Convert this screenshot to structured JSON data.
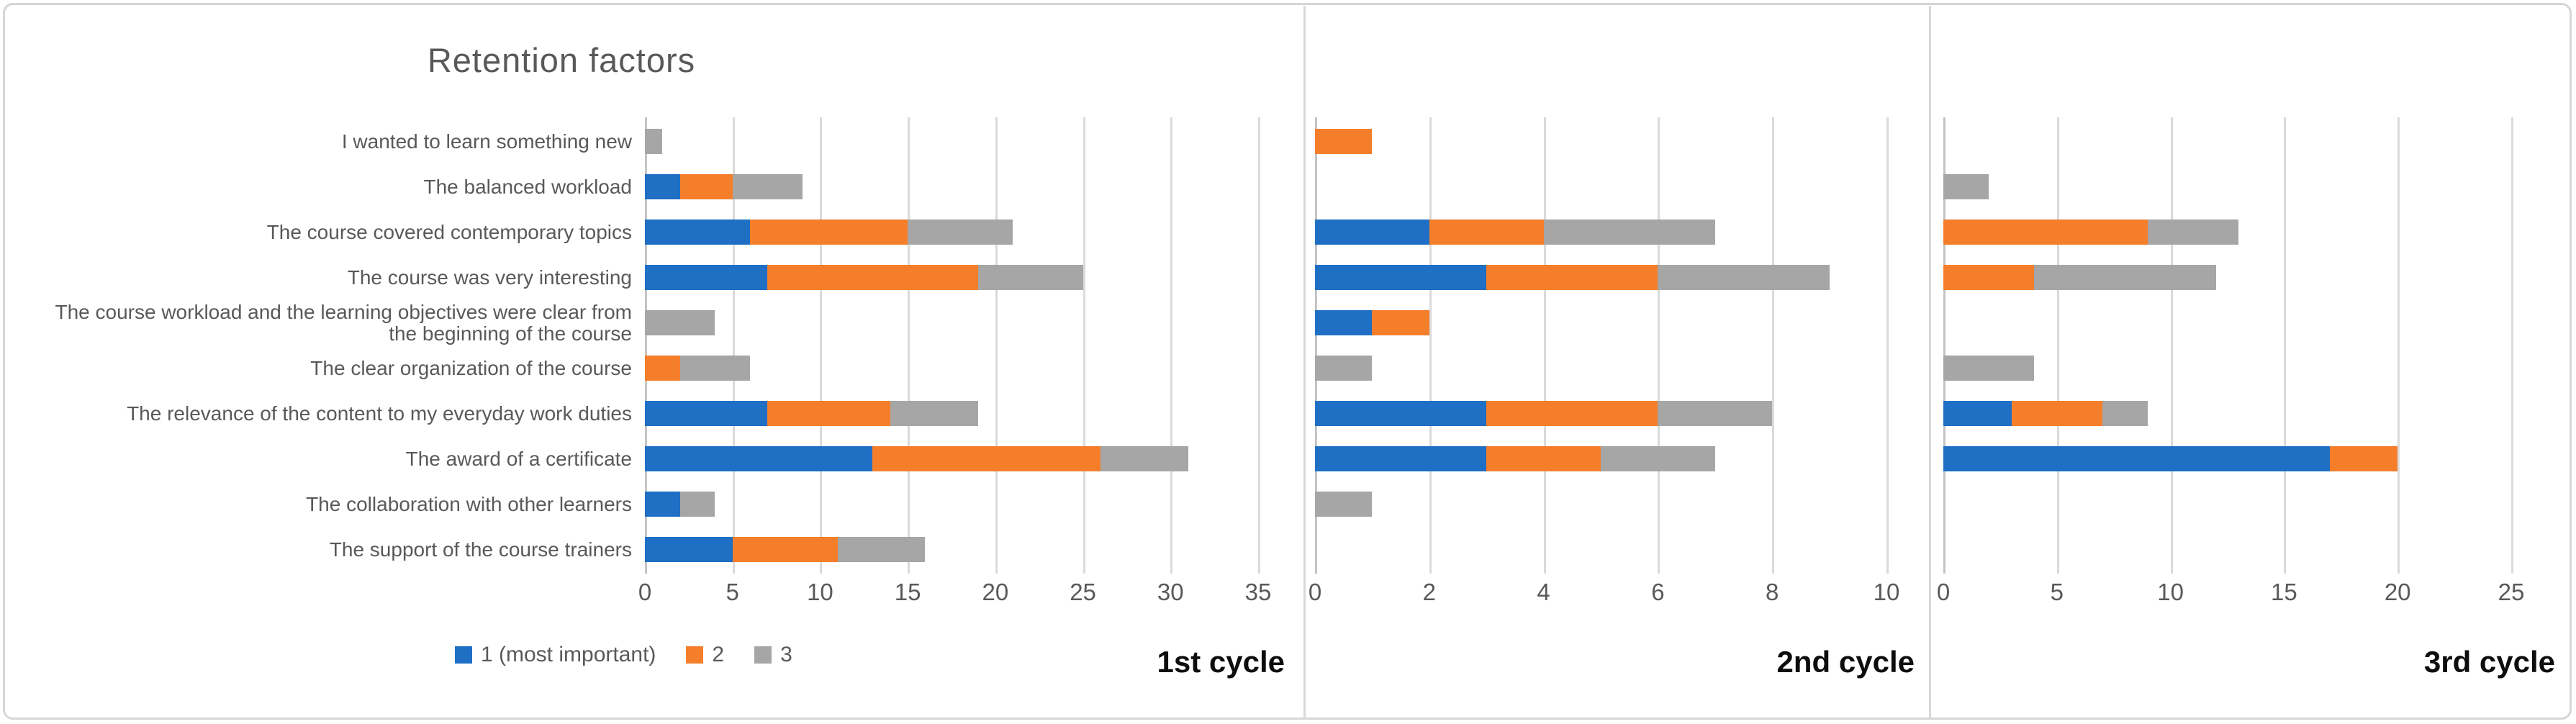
{
  "figure": {
    "title": "Retention factors",
    "legend": [
      {
        "label": "1 (most important)",
        "color": "#1f6fc5"
      },
      {
        "label": "2",
        "color": "#f57e2b"
      },
      {
        "label": "3",
        "color": "#a6a6a6"
      }
    ],
    "colors": {
      "blue": "#1f6fc5",
      "orange": "#f57e2b",
      "gray": "#a6a6a6",
      "gridline": "#dadada",
      "text": "#595959"
    }
  },
  "categories": [
    "I wanted to learn something new",
    "The balanced workload",
    "The course covered contemporary topics",
    "The course was very interesting",
    "The course workload and the learning objectives were clear from the beginning of the course",
    "The clear organization of the course",
    "The relevance of the content to my everyday work duties",
    "The award of a certificate",
    "The collaboration with other learners",
    "The support of the course trainers"
  ],
  "chart_data": [
    {
      "type": "bar",
      "orientation": "horizontal",
      "stacked": true,
      "panel_label": "1st cycle",
      "title": "Retention factors",
      "xlim": [
        0,
        35
      ],
      "xticks": [
        0,
        5,
        10,
        15,
        20,
        25,
        30,
        35
      ],
      "grid": true,
      "legend_position": "bottom",
      "categories_ref": "categories",
      "series": [
        {
          "name": "1 (most important)",
          "color": "#1f6fc5",
          "values": [
            0,
            2,
            6,
            7,
            0,
            0,
            7,
            13,
            2,
            5
          ]
        },
        {
          "name": "2",
          "color": "#f57e2b",
          "values": [
            0,
            3,
            9,
            12,
            0,
            2,
            7,
            13,
            0,
            6
          ]
        },
        {
          "name": "3",
          "color": "#a6a6a6",
          "values": [
            1,
            4,
            6,
            6,
            4,
            4,
            5,
            5,
            2,
            5
          ]
        }
      ]
    },
    {
      "type": "bar",
      "orientation": "horizontal",
      "stacked": true,
      "panel_label": "2nd cycle",
      "xlim": [
        0,
        10
      ],
      "xticks": [
        0,
        2,
        4,
        6,
        8,
        10
      ],
      "grid": true,
      "categories_ref": "categories",
      "series": [
        {
          "name": "1 (most important)",
          "color": "#1f6fc5",
          "values": [
            0,
            0,
            2,
            3,
            1,
            0,
            3,
            3,
            0,
            0
          ]
        },
        {
          "name": "2",
          "color": "#f57e2b",
          "values": [
            1,
            0,
            2,
            3,
            1,
            0,
            3,
            2,
            0,
            0
          ]
        },
        {
          "name": "3",
          "color": "#a6a6a6",
          "values": [
            0,
            0,
            3,
            3,
            0,
            1,
            2,
            2,
            1,
            0
          ]
        }
      ]
    },
    {
      "type": "bar",
      "orientation": "horizontal",
      "stacked": true,
      "panel_label": "3rd cycle",
      "xlim": [
        0,
        25
      ],
      "xticks": [
        0,
        5,
        10,
        15,
        20,
        25
      ],
      "grid": true,
      "categories_ref": "categories",
      "series": [
        {
          "name": "1 (most important)",
          "color": "#1f6fc5",
          "values": [
            0,
            0,
            0,
            0,
            0,
            0,
            3,
            17,
            0,
            0
          ]
        },
        {
          "name": "2",
          "color": "#f57e2b",
          "values": [
            0,
            0,
            9,
            4,
            0,
            0,
            4,
            3,
            0,
            0
          ]
        },
        {
          "name": "3",
          "color": "#a6a6a6",
          "values": [
            0,
            2,
            4,
            8,
            0,
            4,
            2,
            0,
            0,
            0
          ]
        }
      ]
    }
  ]
}
